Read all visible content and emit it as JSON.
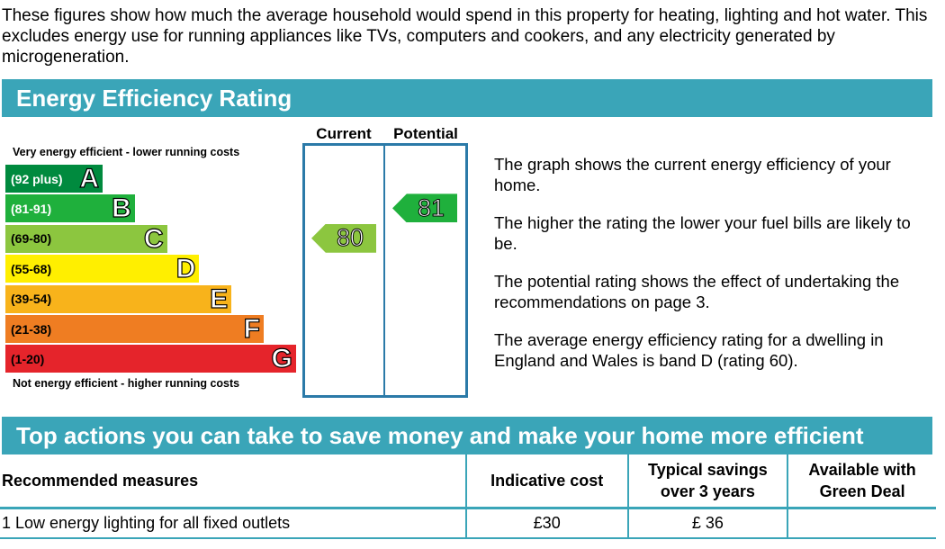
{
  "intro": "These figures show how much the average household would spend in this property for heating, lighting and hot water. This excludes energy use for running appliances like TVs, computers and cookers, and any electricity generated by microgeneration.",
  "section1_title": "Energy Efficiency Rating",
  "graph": {
    "columns": {
      "current": "Current",
      "potential": "Potential"
    },
    "top_note": "Very energy efficient - lower running costs",
    "bottom_note": "Not energy efficient - higher running costs",
    "bands": [
      {
        "range": "(92 plus)",
        "letter": "A",
        "color": "#008a3e",
        "text_color": "#ffffff"
      },
      {
        "range": "(81-91)",
        "letter": "B",
        "color": "#1fb03c",
        "text_color": "#ffffff"
      },
      {
        "range": "(69-80)",
        "letter": "C",
        "color": "#8cc63f",
        "text_color": "#000000"
      },
      {
        "range": "(55-68)",
        "letter": "D",
        "color": "#ffef00",
        "text_color": "#000000"
      },
      {
        "range": "(39-54)",
        "letter": "E",
        "color": "#f8b31b",
        "text_color": "#000000"
      },
      {
        "range": "(21-38)",
        "letter": "F",
        "color": "#ef7d22",
        "text_color": "#000000"
      },
      {
        "range": "(1-20)",
        "letter": "G",
        "color": "#e5242b",
        "text_color": "#000000"
      }
    ],
    "current": {
      "value": "80",
      "color": "#8cc63f"
    },
    "potential": {
      "value": "81",
      "color": "#1fb03c"
    }
  },
  "explanation": [
    "The graph shows the current energy efficiency of your home.",
    "The higher the rating the lower your fuel bills are likely to be.",
    "The potential rating shows the effect of undertaking the recommendations on page 3.",
    "The average energy efficiency rating for a dwelling in England and Wales is band D (rating 60)."
  ],
  "section2_title": "Top actions you can take to save money and make your home more efficient",
  "table": {
    "headers": {
      "measures": "Recommended measures",
      "cost": "Indicative cost",
      "savings_1": "Typical savings",
      "savings_2": "over 3 years",
      "green_1": "Available with",
      "green_2": "Green Deal"
    },
    "rows": [
      {
        "measure": "1  Low energy lighting for all fixed outlets",
        "cost": "£30",
        "savings": "£ 36",
        "green_deal": ""
      }
    ]
  }
}
